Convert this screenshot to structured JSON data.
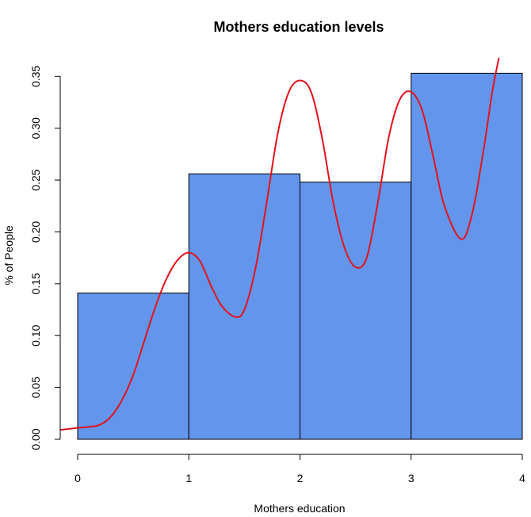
{
  "chart_data": {
    "type": "bar",
    "title": "Mothers education levels",
    "xlabel": "Mothers education",
    "ylabel": "% of People",
    "bins": [
      {
        "start": 0,
        "end": 1,
        "value": 0.141
      },
      {
        "start": 1,
        "end": 2,
        "value": 0.256
      },
      {
        "start": 2,
        "end": 3,
        "value": 0.248
      },
      {
        "start": 3,
        "end": 4,
        "value": 0.353
      }
    ],
    "xlim": [
      -0.16,
      4.0
    ],
    "ylim": [
      0.0,
      0.36
    ],
    "x_ticks": [
      0,
      1,
      2,
      3,
      4
    ],
    "x_tick_labels": [
      "0",
      "1",
      "2",
      "3",
      "4"
    ],
    "y_ticks": [
      0.0,
      0.05,
      0.1,
      0.15,
      0.2,
      0.25,
      0.3,
      0.35
    ],
    "y_tick_labels": [
      "0.00",
      "0.05",
      "0.10",
      "0.15",
      "0.20",
      "0.25",
      "0.30",
      "0.35"
    ],
    "density_curve": {
      "x": [
        -0.16,
        0.0,
        0.1,
        0.2,
        0.3,
        0.4,
        0.5,
        0.6,
        0.7,
        0.8,
        0.9,
        1.0,
        1.1,
        1.2,
        1.3,
        1.42,
        1.5,
        1.6,
        1.7,
        1.8,
        1.9,
        2.0,
        2.1,
        2.2,
        2.3,
        2.4,
        2.5,
        2.6,
        2.7,
        2.8,
        2.9,
        3.0,
        3.1,
        3.2,
        3.3,
        3.45,
        3.55,
        3.65,
        3.73,
        3.79
      ],
      "y": [
        0.009,
        0.011,
        0.012,
        0.014,
        0.022,
        0.038,
        0.062,
        0.095,
        0.128,
        0.155,
        0.173,
        0.18,
        0.172,
        0.148,
        0.128,
        0.118,
        0.125,
        0.165,
        0.228,
        0.295,
        0.335,
        0.346,
        0.335,
        0.29,
        0.228,
        0.185,
        0.166,
        0.175,
        0.228,
        0.292,
        0.328,
        0.335,
        0.317,
        0.272,
        0.225,
        0.193,
        0.218,
        0.278,
        0.335,
        0.368
      ],
      "color": "#e3121b"
    },
    "bar_color": "#6495ed",
    "grid": false
  }
}
